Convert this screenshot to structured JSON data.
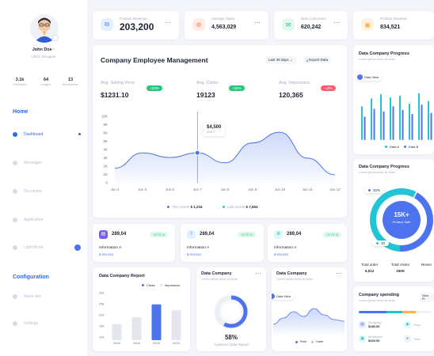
{
  "profile": {
    "name": "John Doe",
    "role": "UI/UX Designer",
    "stats": [
      {
        "value": "3.1k",
        "label": "Followers"
      },
      {
        "value": "64",
        "label": "Images"
      },
      {
        "value": "13",
        "label": "Bookmarks"
      }
    ]
  },
  "nav": {
    "home_section": "Home",
    "config_section": "Configuration",
    "items": [
      {
        "label": "Dashboard"
      },
      {
        "label": "Messages"
      },
      {
        "label": "Document"
      },
      {
        "label": "Application"
      },
      {
        "label": "Light Mode"
      },
      {
        "label": "Stack dev"
      },
      {
        "label": "Settings"
      }
    ]
  },
  "stats": [
    {
      "label": "Product Revenue",
      "value": "203,200",
      "icon": "copy-icon",
      "color": "#4d8cff"
    },
    {
      "label": "Average Sales",
      "value": "4,563,029",
      "icon": "gear-icon",
      "color": "#ff7a59"
    },
    {
      "label": "New Customers",
      "value": "620,242",
      "icon": "mail-icon",
      "color": "#25c47f"
    },
    {
      "label": "Product Reviews",
      "value": "834,521",
      "icon": "wallet-icon",
      "color": "#ffb14a"
    }
  ],
  "management": {
    "title": "Company Employee Management",
    "period": "Last 30 days",
    "export": "Export Data",
    "metrics": [
      {
        "label": "Avg. Selling Price",
        "value": "$1231.10",
        "badge": "+23%",
        "badge_color": "#27c47c"
      },
      {
        "label": "Avg. Clicks",
        "value": "19123",
        "badge": "+32%",
        "badge_color": "#27c47c"
      },
      {
        "label": "Avg. Impression",
        "value": "120,365",
        "badge": "-12%",
        "badge_color": "#ff5a6e"
      }
    ],
    "tooltip": {
      "value": "$4,500",
      "date": "Jun 7"
    },
    "legend": [
      {
        "label": "This month",
        "value": "$ 1,234",
        "color": "#4d73ef"
      },
      {
        "label": "Last Month",
        "value": "$ 7,654",
        "color": "#22c4d6"
      }
    ]
  },
  "chart_data": [
    {
      "type": "area",
      "title": "",
      "x": [
        "Jun 4",
        "Jun 5",
        "Jun 6",
        "Jun 7",
        "Jun 8",
        "Jun 9",
        "Jun 10",
        "Jun 11",
        "Jun 12"
      ],
      "series": [
        {
          "name": "This month",
          "values": [
            2200,
            4500,
            3800,
            4500,
            3000,
            6000,
            7600,
            3700,
            1200
          ]
        }
      ],
      "y_ticks": [
        "0",
        "1K",
        "2K",
        "3K",
        "4K",
        "5K",
        "6K",
        "8K",
        "10K"
      ],
      "ylim": [
        0,
        10000
      ]
    },
    {
      "type": "bar",
      "title": "Data Company Report",
      "categories": [
        "03/15",
        "03/16",
        "03/18",
        "04/15"
      ],
      "series": [
        {
          "name": "Clicks",
          "values": [
            0,
            0,
            26,
            0
          ]
        },
        {
          "name": "Impression",
          "values": [
            7,
            10,
            0,
            13
          ]
        }
      ],
      "y_ticks": [
        "30k",
        "25k",
        "20k",
        "15k",
        "10k"
      ],
      "ylim": [
        0,
        30
      ]
    },
    {
      "type": "bar",
      "title": "Data Company Progress",
      "categories": [
        "1",
        "2",
        "3",
        "4",
        "5",
        "6",
        "7",
        "8"
      ],
      "series": [
        {
          "name": "Data A",
          "values": [
            65,
            80,
            88,
            82,
            85,
            70,
            90,
            75
          ]
        },
        {
          "name": "Data B",
          "values": [
            45,
            60,
            55,
            65,
            58,
            50,
            68,
            52
          ]
        }
      ],
      "ylim": [
        0,
        100
      ]
    },
    {
      "type": "pie",
      "title": "Data Company Progress",
      "categories": [
        "Total order",
        "Total Visitor",
        "Revenue"
      ],
      "values": [
        32,
        10,
        58
      ]
    },
    {
      "type": "area",
      "title": "Data Company",
      "x": [
        "1",
        "2",
        "3",
        "4",
        "5",
        "6",
        "7",
        "8"
      ],
      "series": [
        {
          "name": "Pixel",
          "values": [
            30,
            50,
            70,
            55,
            80,
            60,
            45,
            40
          ]
        }
      ]
    }
  ],
  "mini_cards": [
    {
      "value": "289,04",
      "badge": "+5.75 %",
      "title": "Information A",
      "balance": "$ 910,053"
    },
    {
      "value": "289,04",
      "badge": "+5.75 %",
      "title": "Information A",
      "balance": "$ 910,053"
    },
    {
      "value": "289,04",
      "badge": "+5.75 %",
      "title": "Information A",
      "balance": "$ 910,053"
    }
  ],
  "report": {
    "title": "Data Company Report",
    "legend": [
      "Clicks",
      "Impression"
    ]
  },
  "data_company_1": {
    "title": "Data Company",
    "subtitle": "Lorem ipsum dolor sit amet",
    "percent": "58%",
    "caption": "Audience Data Report"
  },
  "data_company_2": {
    "title": "Data Company",
    "subtitle": "Lorem ipsum dolor sit amet",
    "view": "Data View",
    "legend": [
      "Pixel",
      "Hotel"
    ]
  },
  "progress_1": {
    "title": "Data Company Progress",
    "subtitle": "Lorem ipsum dolor sit amet",
    "view": "Data View",
    "legend": [
      "Data A",
      "Data B"
    ]
  },
  "progress_2": {
    "title": "Data Company Progress",
    "subtitle": "Lorem ipsum dolor sit amet",
    "center_value": "15K+",
    "center_label": "Product Sale",
    "ring_a": "32%",
    "ring_b": "10",
    "labels": [
      {
        "title": "Total order",
        "value": "6,512"
      },
      {
        "title": "Total Visitor",
        "value": "150K"
      },
      {
        "title": "Reven",
        "value": ""
      }
    ]
  },
  "spending": {
    "title": "Company spending",
    "subtitle": "Lorem ipsum dolor sit amet",
    "button": "View Pr",
    "items": [
      {
        "name": "Shopping",
        "value": "$180.00"
      },
      {
        "name": "Wholesale",
        "value": "$320.00"
      },
      {
        "name": "Shop",
        "value": ""
      },
      {
        "name": "Other",
        "value": ""
      }
    ]
  }
}
